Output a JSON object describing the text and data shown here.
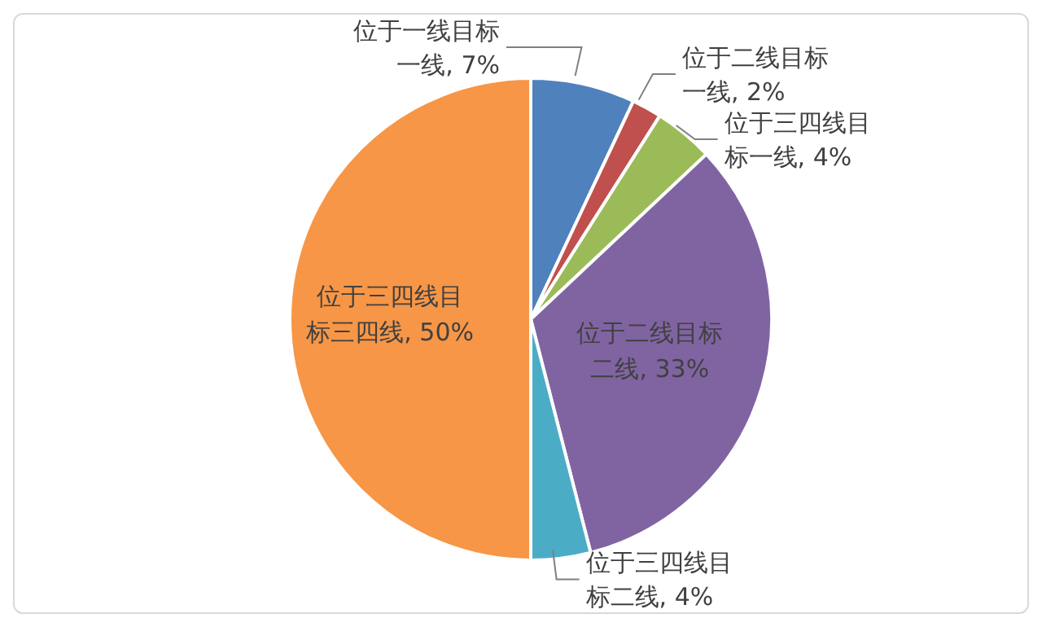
{
  "chart_data": {
    "type": "pie",
    "categories": [
      "位于一线目标一线",
      "位于二线目标一线",
      "位于三四线目标一线",
      "位于二线目标二线",
      "位于三四线目标二线",
      "位于三四线目标三四线"
    ],
    "values": [
      7,
      2,
      4,
      33,
      4,
      50
    ],
    "value_labels": [
      "7%",
      "2%",
      "4%",
      "33%",
      "4%",
      "50%"
    ],
    "colors": [
      "#4f81bd",
      "#c0504d",
      "#9bbb59",
      "#8064a2",
      "#4bacc6",
      "#f79646"
    ],
    "legend": false
  }
}
